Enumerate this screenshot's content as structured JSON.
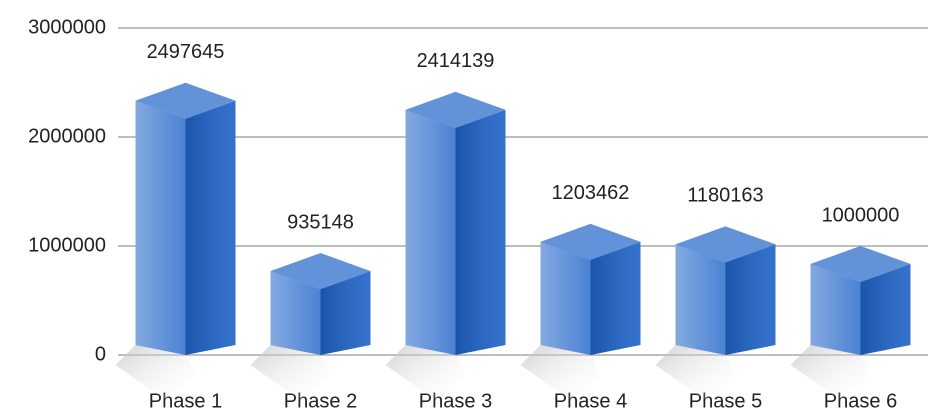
{
  "chart_data": {
    "type": "bar3d",
    "categories": [
      "Phase 1",
      "Phase 2",
      "Phase 3",
      "Phase 4",
      "Phase 5",
      "Phase 6"
    ],
    "values": [
      2497645,
      935148,
      2414139,
      1203462,
      1180163,
      1000000
    ],
    "color": "#1f63c8",
    "ylim": [
      0,
      3000000
    ],
    "yticks": [
      0,
      1000000,
      2000000,
      3000000
    ],
    "grid": true
  }
}
